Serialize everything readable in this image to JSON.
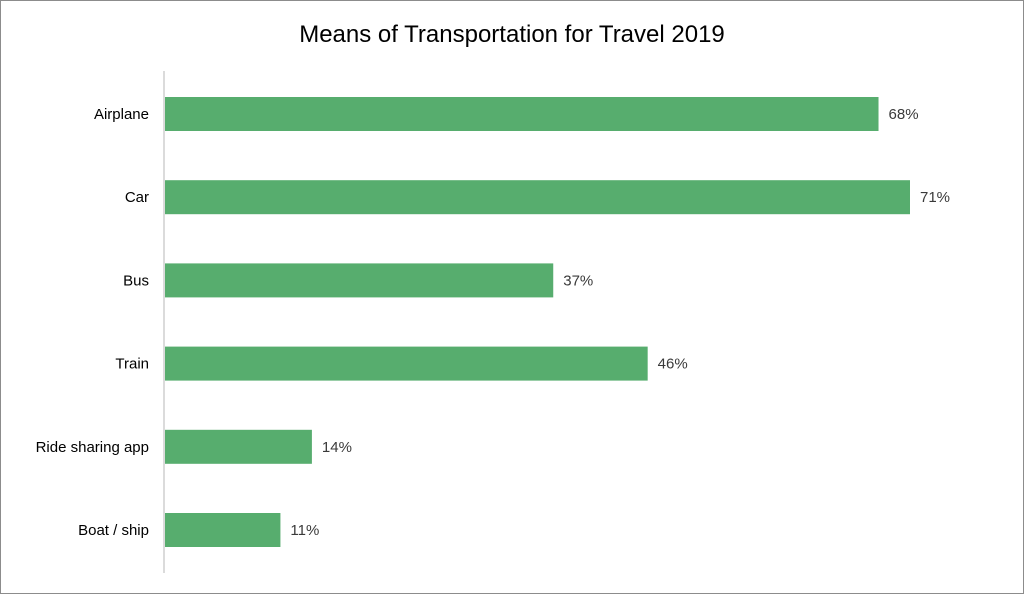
{
  "chart_data": {
    "type": "bar",
    "orientation": "horizontal",
    "title": "Means of Transportation for Travel 2019",
    "categories": [
      "Airplane",
      "Car",
      "Bus",
      "Train",
      "Ride sharing app",
      "Boat / ship"
    ],
    "values": [
      68,
      71,
      37,
      46,
      14,
      11
    ],
    "value_labels": [
      "68%",
      "71%",
      "37%",
      "46%",
      "14%",
      "11%"
    ],
    "unit": "%",
    "xlim": [
      0,
      71
    ],
    "grid": false,
    "bar_color": "#57ad6e"
  }
}
